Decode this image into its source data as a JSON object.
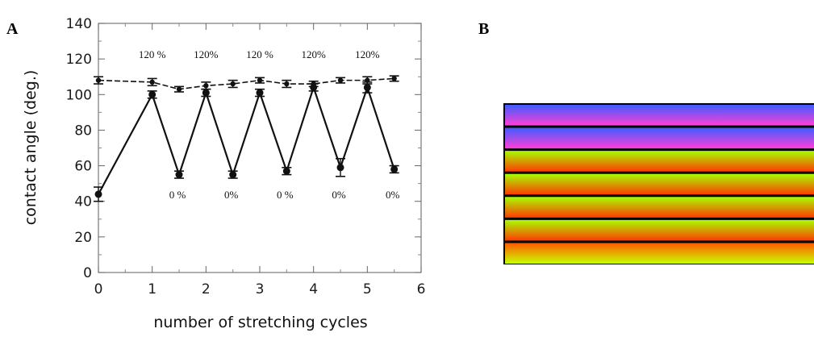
{
  "panels": {
    "a_label": "A",
    "b_label": "B"
  },
  "chart_data": {
    "type": "line",
    "xlabel": "number of stretching cycles",
    "ylabel": "contact angle (deg.)",
    "xlim": [
      0,
      6
    ],
    "ylim": [
      0,
      140
    ],
    "xticks": [
      0,
      1,
      2,
      3,
      4,
      5,
      6
    ],
    "yticks": [
      0,
      20,
      40,
      60,
      80,
      100,
      120,
      140
    ],
    "grid": false,
    "series": [
      {
        "style": "dashed",
        "x": [
          0,
          1,
          1.5,
          2,
          2.5,
          3,
          3.5,
          4,
          4.5,
          5,
          5.5
        ],
        "values": [
          108,
          107,
          103,
          105,
          106,
          108,
          106,
          106,
          108,
          108,
          109
        ],
        "errors": [
          2,
          2,
          1.5,
          2,
          2,
          1.5,
          2,
          1.5,
          1.5,
          2,
          1.5
        ]
      },
      {
        "style": "solid",
        "x": [
          0,
          1,
          1.5,
          2,
          2.5,
          3,
          3.5,
          4,
          4.5,
          5,
          5.5
        ],
        "values": [
          44,
          100,
          55,
          101,
          55,
          101,
          57,
          104,
          59,
          104,
          58
        ],
        "errors": [
          4,
          2,
          2,
          2,
          2,
          2,
          2,
          2,
          5,
          3,
          2
        ]
      }
    ],
    "annotations": {
      "top": [
        {
          "x": 1,
          "text": "120 %"
        },
        {
          "x": 2,
          "text": "120%"
        },
        {
          "x": 3,
          "text": "120 %"
        },
        {
          "x": 4,
          "text": "120%"
        },
        {
          "x": 5,
          "text": "120%"
        }
      ],
      "bottom": [
        {
          "x": 1.5,
          "text": "0 %"
        },
        {
          "x": 2.5,
          "text": "0%"
        },
        {
          "x": 3.5,
          "text": "0 %"
        },
        {
          "x": 4.5,
          "text": "0%"
        },
        {
          "x": 5.5,
          "text": "0%"
        }
      ]
    }
  },
  "panel_b": {
    "type": "image",
    "stripes": [
      {
        "top": "#3f5cff",
        "bottom": "#ff3fd8"
      },
      {
        "top": "#3f5cff",
        "bottom": "#ff3fd8"
      },
      {
        "top": "#a8ff00",
        "bottom": "#ff3a00"
      },
      {
        "top": "#a8ff00",
        "bottom": "#ff3a00"
      },
      {
        "top": "#a8ff00",
        "bottom": "#ff3a00"
      },
      {
        "top": "#a8ff00",
        "bottom": "#ff3a00"
      },
      {
        "top": "#ff5a00",
        "bottom": "#c8ff00"
      }
    ]
  }
}
